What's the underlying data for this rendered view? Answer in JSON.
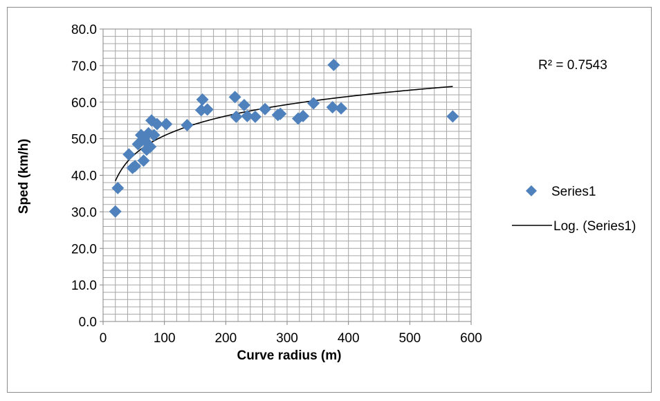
{
  "chart_data": {
    "type": "scatter",
    "xlabel": "Curve radius (m)",
    "ylabel": "Sped (km/h)",
    "xlim": [
      0,
      600
    ],
    "ylim": [
      0,
      80
    ],
    "x_ticks": [
      "0",
      "100",
      "200",
      "300",
      "400",
      "500",
      "600"
    ],
    "y_ticks": [
      "0.0",
      "10.0",
      "20.0",
      "30.0",
      "40.0",
      "50.0",
      "60.0",
      "70.0",
      "80.0"
    ],
    "grid": true,
    "legend_position": "right",
    "annotation": "R² = 0.7543",
    "marker_color": "#4f81bd",
    "trend_color": "#000000",
    "series": [
      {
        "name": "Series1",
        "marker": "diamond",
        "points": [
          [
            20,
            30.1
          ],
          [
            24,
            36.5
          ],
          [
            42,
            45.7
          ],
          [
            48,
            42.0
          ],
          [
            52,
            42.5
          ],
          [
            57,
            48.5
          ],
          [
            62,
            51.0
          ],
          [
            66,
            44.0
          ],
          [
            68,
            49.5
          ],
          [
            71,
            47.0
          ],
          [
            74,
            51.5
          ],
          [
            77,
            47.8
          ],
          [
            79,
            55.0
          ],
          [
            83,
            51.0
          ],
          [
            88,
            54.0
          ],
          [
            103,
            54.0
          ],
          [
            137,
            53.7
          ],
          [
            160,
            57.8
          ],
          [
            162,
            60.7
          ],
          [
            170,
            58.0
          ],
          [
            215,
            61.4
          ],
          [
            217,
            56.0
          ],
          [
            230,
            59.2
          ],
          [
            235,
            56.2
          ],
          [
            248,
            56.0
          ],
          [
            264,
            58.1
          ],
          [
            285,
            56.5
          ],
          [
            289,
            56.8
          ],
          [
            318,
            55.5
          ],
          [
            326,
            56.2
          ],
          [
            343,
            59.7
          ],
          [
            374,
            58.6
          ],
          [
            376,
            70.2
          ],
          [
            388,
            58.3
          ],
          [
            570,
            56.1
          ]
        ]
      }
    ],
    "trendline": {
      "name": "Log. (Series1)",
      "type": "log",
      "x_range": [
        20,
        570
      ],
      "r_squared": 0.7543
    }
  }
}
